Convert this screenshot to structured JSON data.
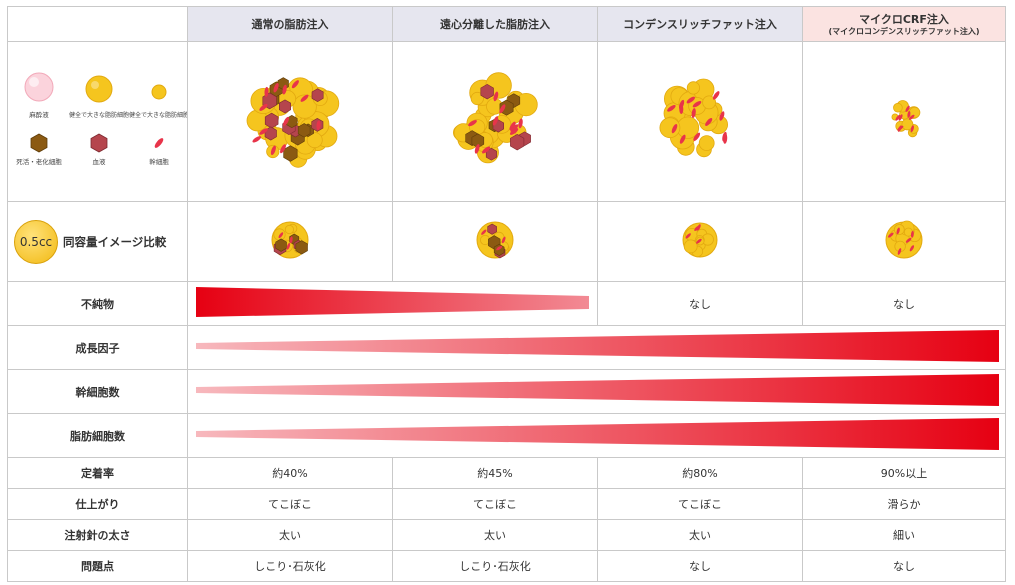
{
  "columns": [
    {
      "title": "通常の脂肪注入",
      "subtitle": ""
    },
    {
      "title": "遠心分離した脂肪注入",
      "subtitle": ""
    },
    {
      "title": "コンデンスリッチファット注入",
      "subtitle": ""
    },
    {
      "title": "マイクロCRF注入",
      "subtitle": "(マイクロコンデンスリッチファット注入)"
    }
  ],
  "legend": {
    "items": [
      {
        "label": "麻酔液"
      },
      {
        "label": "健全で大きな脂肪細胞"
      },
      {
        "label": "健全で大きな脂肪細胞"
      },
      {
        "label": "死活・老化細胞"
      },
      {
        "label": "血液"
      },
      {
        "label": "幹細胞"
      }
    ]
  },
  "volume_row": {
    "badge": "0.5cc",
    "label": "同容量イメージ比較"
  },
  "rows": [
    {
      "label": "不純物",
      "values": [
        "",
        "",
        "なし",
        "なし"
      ]
    },
    {
      "label": "成長因子",
      "values": [
        "",
        "",
        "",
        ""
      ]
    },
    {
      "label": "幹細胞数",
      "values": [
        "",
        "",
        "",
        ""
      ]
    },
    {
      "label": "脂肪細胞数",
      "values": [
        "",
        "",
        "",
        ""
      ]
    },
    {
      "label": "定着率",
      "values": [
        "約40%",
        "約45%",
        "約80%",
        "90%以上"
      ]
    },
    {
      "label": "仕上がり",
      "values": [
        "てこぼこ",
        "てこぼこ",
        "てこぼこ",
        "滑らか"
      ]
    },
    {
      "label": "注射針の太さ",
      "values": [
        "太い",
        "太い",
        "太い",
        "細い"
      ]
    },
    {
      "label": "問題点",
      "values": [
        "しこり･石灰化",
        "しこり･石灰化",
        "なし",
        "なし"
      ]
    }
  ],
  "colors": {
    "fat": "#f5c51e",
    "fat_edge": "#e2a910",
    "blood": "#b5454d",
    "dead": "#8b5a12",
    "stem": "#e8344a",
    "header": "#e6e6ef",
    "header_highlight": "#fbe3e1",
    "wedge_dark": "#e60012",
    "wedge_light": "#f7b8bd"
  }
}
